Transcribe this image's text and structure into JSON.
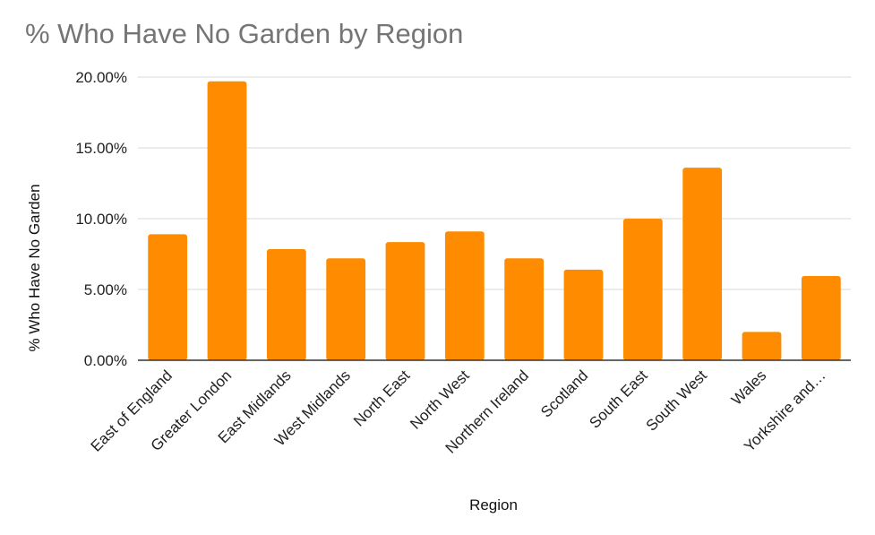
{
  "chart_data": {
    "type": "bar",
    "title": "% Who Have No Garden by Region",
    "xlabel": "Region",
    "ylabel": "% Who Have No Garden",
    "categories": [
      "East of England",
      "Greater London",
      "East Midlands",
      "West Midlands",
      "North East",
      "North West",
      "Northern Ireland",
      "Scotland",
      "South East",
      "South West",
      "Wales",
      "Yorkshire and…"
    ],
    "values": [
      8.9,
      19.7,
      7.85,
      7.2,
      8.35,
      9.1,
      7.2,
      6.4,
      10.0,
      13.6,
      2.0,
      5.95
    ],
    "yticks": [
      0,
      5,
      10,
      15,
      20
    ],
    "ytick_labels": [
      "0.00%",
      "5.00%",
      "10.00%",
      "15.00%",
      "20.00%"
    ],
    "ylim": [
      0,
      20
    ],
    "grid": true,
    "legend": "none",
    "bar_color": "#ff8c00"
  }
}
